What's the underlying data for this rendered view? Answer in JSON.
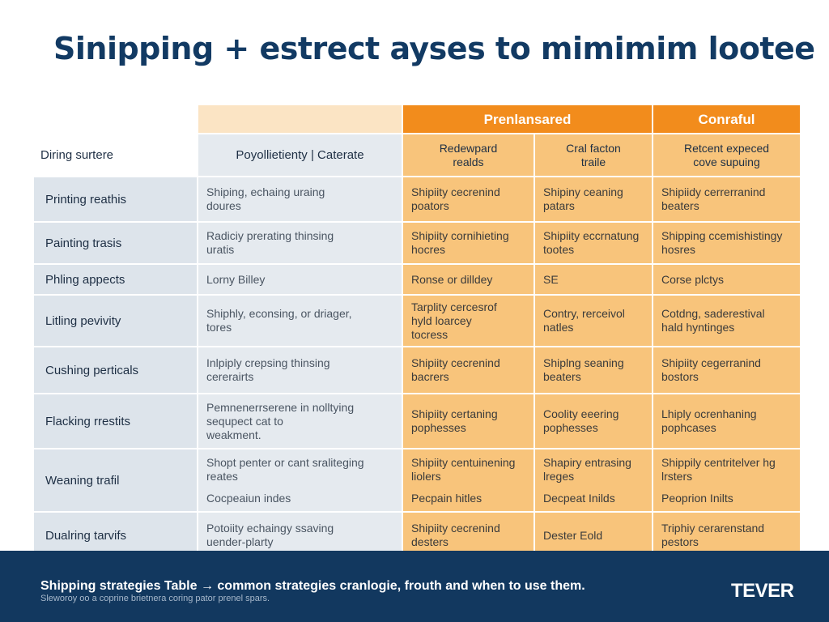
{
  "title": "Sinipping + estrect ayses to mimimim lootee",
  "table": {
    "group_headers": [
      "Prenlansared",
      "Conraful"
    ],
    "row_header_label": "Diring surtere",
    "column_headers": [
      "Poyollietienty | Caterate",
      "Redewpard\nrealds",
      "Cral facton\ntraile",
      "Retcent expeced\ncove supuing"
    ],
    "rows": [
      {
        "label": "Printing reathis",
        "cells": [
          [
            "Shiping, echaing uraing",
            "doures"
          ],
          [
            "Shipiity cecrenind",
            "poators"
          ],
          [
            "Shipiny ceaning",
            "patars"
          ],
          [
            "Shipiidy cerrerranind",
            "beaters"
          ]
        ]
      },
      {
        "label": "Painting trasis",
        "cells": [
          [
            "Radiciy prerating thinsing",
            "uratis"
          ],
          [
            "Shipiity cornihieting",
            "hocres"
          ],
          [
            "Shipiity eccrnatung",
            "tootes"
          ],
          [
            "Shipping ccemishistingy",
            "hosres"
          ]
        ]
      },
      {
        "label": "Phling appects",
        "cells": [
          [
            "Lorny Billey"
          ],
          [
            "Ronse or dilldey"
          ],
          [
            "SE"
          ],
          [
            "Corse plctys"
          ]
        ]
      },
      {
        "label": "Litling pevivity",
        "cells": [
          [
            "Shiphly, econsing, or driager,",
            "tores"
          ],
          [
            "Tarplity cercesrof",
            "hyld loarcey",
            "tocress"
          ],
          [
            "Contry, rerceivol",
            "natles"
          ],
          [
            "Cotdng, saderestival",
            "hald hyntinges"
          ]
        ]
      },
      {
        "label": "Cushing perticals",
        "cells": [
          [
            "Inlpiply crepsing thinsing",
            "cererairts"
          ],
          [
            "Shipiity cecrenind",
            "bacrers"
          ],
          [
            "Shiplng seaning",
            "beaters"
          ],
          [
            "Shipiity cegerranind",
            "bostors"
          ]
        ]
      },
      {
        "label": "Flacking rrestits",
        "cells": [
          [
            "Pemnenerrserene in nolltying",
            "sequpect cat to",
            "weakment."
          ],
          [
            "Shipiity certaning",
            "pophesses"
          ],
          [
            "Coolity eeering",
            "pophesses"
          ],
          [
            "Lhiply ocrenhaning",
            "pophcases"
          ]
        ]
      },
      {
        "label": "Weaning trafil",
        "cells": [
          [
            "Shopt penter or cant sraliteging",
            "reates",
            "Cocpeaiun indes"
          ],
          [
            "Shipiity centuinening",
            "liolers",
            "Pecpain hitles"
          ],
          [
            "Shapiry entrasing",
            "lreges",
            "Decpeat Inilds"
          ],
          [
            "Shippily centritelver hg",
            "lrsters",
            "Peoprion Inilts"
          ]
        ]
      },
      {
        "label": "Dualring tarvifs",
        "cells": [
          [
            "Potoiity echaingy ssaving",
            "uender-plarty"
          ],
          [
            "Shipiity cecrenind",
            "desters"
          ],
          [
            "Dester Eold"
          ],
          [
            "Triphiy cerarenstand",
            "pestors"
          ]
        ]
      }
    ]
  },
  "footer": {
    "caption": "Shipping strategies Table → common strategies cranlogie, frouth and when to use them.",
    "subcaption": "Sleworoy oo a coprine brietnera coring pator prenel spars.",
    "logo": "TEVER"
  },
  "colors": {
    "title": "#123a63",
    "orange_header": "#f28c1c",
    "orange_cell": "#f8c47b",
    "light_band": "#fbe4c4",
    "blue_grey_cell": "#e5eaef",
    "footer_bg": "#12385f"
  }
}
